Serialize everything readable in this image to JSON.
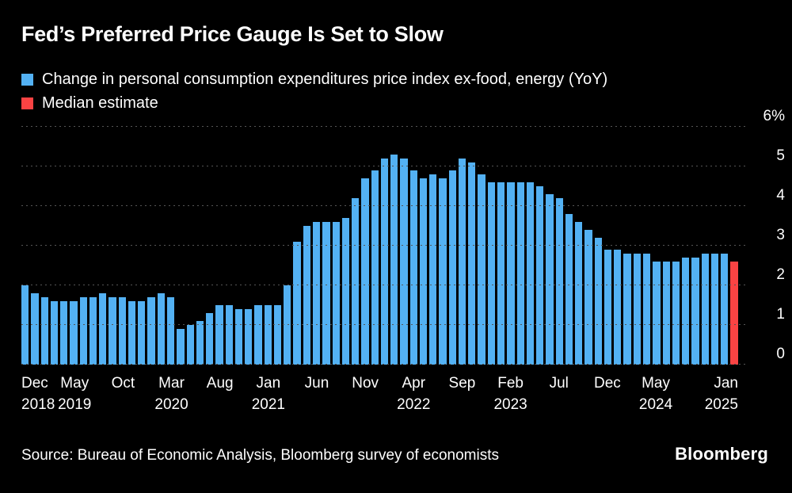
{
  "title": "Fed’s Preferred Price Gauge Is Set to Slow",
  "legend": {
    "items": [
      {
        "label": "Change in personal consumption expenditures price index ex-food, energy (YoY)",
        "color": "#53B1F3"
      },
      {
        "label": "Median estimate",
        "color": "#FA4343"
      }
    ]
  },
  "source": "Source: Bureau of Economic Analysis, Bloomberg survey of economists",
  "logo": "Bloomberg",
  "chart_data": {
    "type": "bar",
    "title": "Fed’s Preferred Price Gauge Is Set to Slow",
    "series_name": "Change in personal consumption expenditures price index ex-food, energy (YoY)",
    "estimate_name": "Median estimate",
    "x_start": "Dec 2018",
    "x_end": "Jan 2025",
    "values": [
      2.0,
      1.8,
      1.7,
      1.6,
      1.6,
      1.6,
      1.7,
      1.7,
      1.8,
      1.7,
      1.7,
      1.6,
      1.6,
      1.7,
      1.8,
      1.7,
      0.9,
      1.0,
      1.1,
      1.3,
      1.5,
      1.5,
      1.4,
      1.4,
      1.5,
      1.5,
      1.5,
      2.0,
      3.1,
      3.5,
      3.6,
      3.6,
      3.6,
      3.7,
      4.2,
      4.7,
      4.9,
      5.2,
      5.3,
      5.2,
      4.9,
      4.7,
      4.8,
      4.7,
      4.9,
      5.2,
      5.1,
      4.8,
      4.6,
      4.6,
      4.6,
      4.6,
      4.6,
      4.5,
      4.3,
      4.2,
      3.8,
      3.6,
      3.4,
      3.2,
      2.9,
      2.9,
      2.8,
      2.8,
      2.8,
      2.6,
      2.6,
      2.6,
      2.7,
      2.7,
      2.8,
      2.8,
      2.8,
      2.6
    ],
    "estimate_index": 73,
    "bar_color": "#53B1F3",
    "estimate_color": "#FA4343",
    "ylim": [
      0,
      6
    ],
    "yticks": [
      0,
      1,
      2,
      3,
      4,
      5,
      6
    ],
    "ytick_labels": [
      "0",
      "1",
      "2",
      "3",
      "4",
      "5",
      "6%"
    ],
    "grid": "horizontal-dotted",
    "legend_position": "top-left",
    "xticks": [
      {
        "month": "Dec",
        "year": "2018",
        "index": 0
      },
      {
        "month": "May",
        "year": "2019",
        "index": 5
      },
      {
        "month": "Oct",
        "index": 10
      },
      {
        "month": "Mar",
        "year": "2020",
        "index": 15
      },
      {
        "month": "Aug",
        "index": 20
      },
      {
        "month": "Jan",
        "year": "2021",
        "index": 25
      },
      {
        "month": "Jun",
        "index": 30
      },
      {
        "month": "Nov",
        "index": 35
      },
      {
        "month": "Apr",
        "year": "2022",
        "index": 40
      },
      {
        "month": "Sep",
        "index": 45
      },
      {
        "month": "Feb",
        "year": "2023",
        "index": 50
      },
      {
        "month": "Jul",
        "index": 55
      },
      {
        "month": "Dec",
        "index": 60
      },
      {
        "month": "May",
        "year": "2024",
        "index": 65
      },
      {
        "month": "Jan",
        "year": "2025",
        "index": 73
      }
    ]
  }
}
